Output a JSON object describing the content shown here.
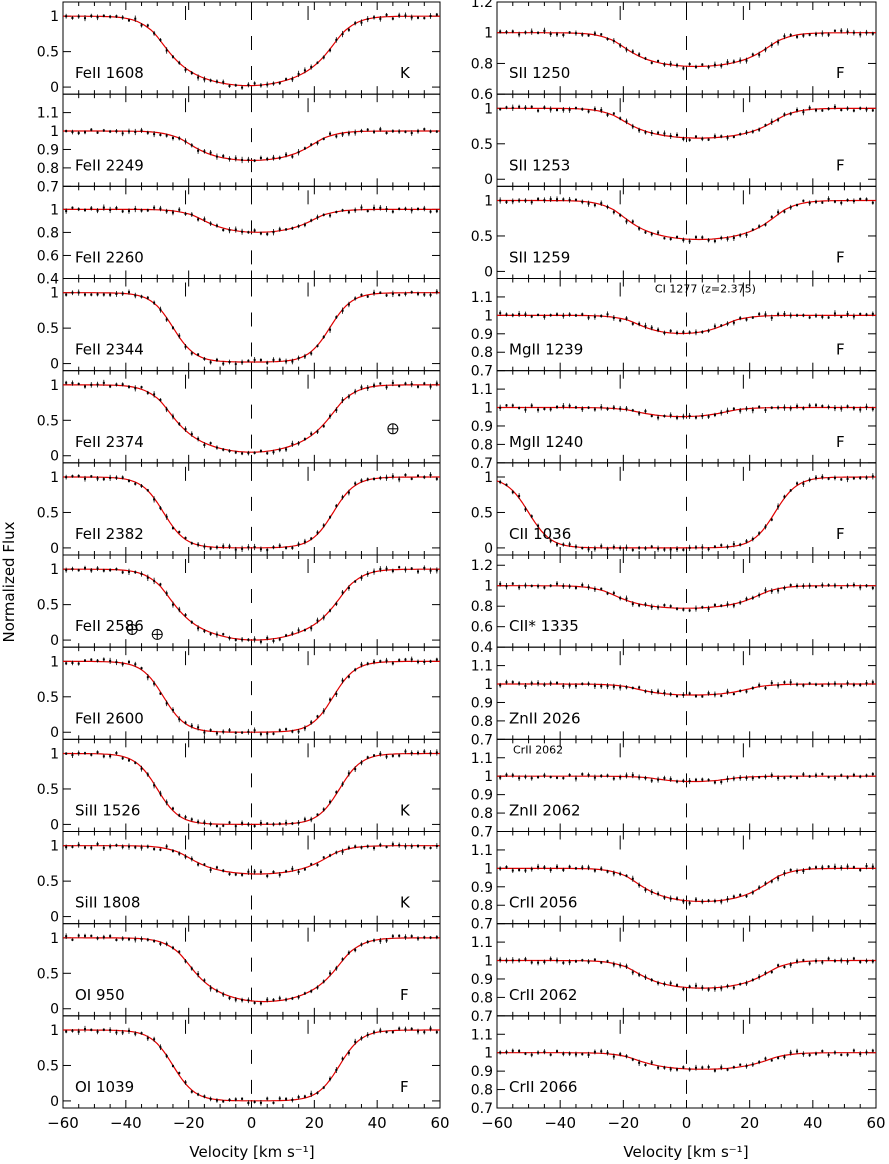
{
  "chart_data": {
    "type": "line",
    "title": "",
    "xlabel": "Velocity [km s⁻¹]",
    "ylabel": "Normalized Flux",
    "xlim": [
      -60,
      60
    ],
    "x_ticks": [
      "−60",
      "−40",
      "−20",
      "0",
      "20",
      "40",
      "60"
    ],
    "component_velocities": [
      -21,
      0,
      18
    ],
    "panel_columns": [
      [
        {
          "ion": "FeII",
          "wl": "1608",
          "tag": "K",
          "ylim": [
            -0.1,
            1.2
          ],
          "yticks": [
            "0",
            "0.5",
            "1"
          ],
          "depth": 0.98,
          "vmin": -30,
          "vmax": 28,
          "shape": "v"
        },
        {
          "ion": "FeII",
          "wl": "2249",
          "tag": "",
          "ylim": [
            0.7,
            1.2
          ],
          "yticks": [
            "0.7",
            "0.8",
            "0.9",
            "1",
            "1.1"
          ],
          "depth": 0.16,
          "vmin": -22,
          "vmax": 22,
          "shape": "v"
        },
        {
          "ion": "FeII",
          "wl": "2260",
          "tag": "",
          "ylim": [
            0.4,
            1.2
          ],
          "yticks": [
            "0.4",
            "0.6",
            "0.8",
            "1"
          ],
          "depth": 0.2,
          "vmin": -18,
          "vmax": 22,
          "shape": "v"
        },
        {
          "ion": "FeII",
          "wl": "2344",
          "tag": "",
          "ylim": [
            -0.1,
            1.2
          ],
          "yticks": [
            "0",
            "0.5",
            "1"
          ],
          "depth": 0.98,
          "vmin": -25,
          "vmax": 25,
          "shape": "sat"
        },
        {
          "ion": "FeII",
          "wl": "2374",
          "tag": "",
          "ylim": [
            -0.1,
            1.2
          ],
          "yticks": [
            "0",
            "0.5",
            "1"
          ],
          "depth": 0.95,
          "vmin": -28,
          "vmax": 28,
          "shape": "v"
        },
        {
          "ion": "FeII",
          "wl": "2382",
          "tag": "",
          "ylim": [
            -0.1,
            1.2
          ],
          "yticks": [
            "0",
            "0.5",
            "1"
          ],
          "depth": 1.0,
          "vmin": -28,
          "vmax": 26,
          "shape": "sat"
        },
        {
          "ion": "FeII",
          "wl": "2586",
          "tag": "",
          "ylim": [
            -0.1,
            1.2
          ],
          "yticks": [
            "0",
            "0.5",
            "1"
          ],
          "depth": 1.0,
          "vmin": -28,
          "vmax": 30,
          "shape": "v"
        },
        {
          "ion": "FeII",
          "wl": "2600",
          "tag": "",
          "ylim": [
            -0.1,
            1.2
          ],
          "yticks": [
            "0",
            "0.5",
            "1"
          ],
          "depth": 1.0,
          "vmin": -28,
          "vmax": 26,
          "shape": "sat"
        },
        {
          "ion": "SiII",
          "wl": "1526",
          "tag": "K",
          "ylim": [
            -0.1,
            1.2
          ],
          "yticks": [
            "0",
            "0.5",
            "1"
          ],
          "depth": 1.0,
          "vmin": -30,
          "vmax": 28,
          "shape": "sat"
        },
        {
          "ion": "SiII",
          "wl": "1808",
          "tag": "K",
          "ylim": [
            -0.1,
            1.2
          ],
          "yticks": [
            "0",
            "0.5",
            "1"
          ],
          "depth": 0.4,
          "vmin": -22,
          "vmax": 26,
          "shape": "v"
        },
        {
          "ion": "OI",
          "wl": "950",
          "tag": "F",
          "ylim": [
            -0.1,
            1.2
          ],
          "yticks": [
            "0",
            "0.5",
            "1"
          ],
          "depth": 0.9,
          "vmin": -22,
          "vmax": 30,
          "shape": "v"
        },
        {
          "ion": "OI",
          "wl": "1039",
          "tag": "F",
          "ylim": [
            -0.1,
            1.2
          ],
          "yticks": [
            "0",
            "0.5",
            "1"
          ],
          "depth": 1.0,
          "vmin": -25,
          "vmax": 28,
          "shape": "sat"
        }
      ],
      [
        {
          "ion": "SII",
          "wl": "1250",
          "tag": "F",
          "ylim": [
            0.6,
            1.2
          ],
          "yticks": [
            "0.8",
            "1",
            "1.2"
          ],
          "yticks_extra": [
            "0.6"
          ],
          "depth": 0.22,
          "vmin": -22,
          "vmax": 28,
          "shape": "v"
        },
        {
          "ion": "SII",
          "wl": "1253",
          "tag": "F",
          "ylim": [
            -0.1,
            1.2
          ],
          "yticks": [
            "0",
            "0.5",
            "1"
          ],
          "depth": 0.42,
          "vmin": -22,
          "vmax": 30,
          "shape": "v"
        },
        {
          "ion": "SII",
          "wl": "1259",
          "tag": "F",
          "ylim": [
            -0.1,
            1.2
          ],
          "yticks": [
            "0",
            "0.5",
            "1"
          ],
          "depth": 0.55,
          "vmin": -22,
          "vmax": 30,
          "shape": "v"
        },
        {
          "ion": "MgII",
          "wl": "1239",
          "tag": "F",
          "ylim": [
            0.7,
            1.2
          ],
          "yticks": [
            "0.7",
            "0.8",
            "0.9",
            "1",
            "1.1"
          ],
          "depth": 0.1,
          "vmin": -18,
          "vmax": 15,
          "shape": "v",
          "note": "CI 1277 (z=2.375)"
        },
        {
          "ion": "MgII",
          "wl": "1240",
          "tag": "F",
          "ylim": [
            0.7,
            1.2
          ],
          "yticks": [
            "0.7",
            "0.8",
            "0.9",
            "1",
            "1.1"
          ],
          "depth": 0.05,
          "vmin": -18,
          "vmax": 15,
          "shape": "v"
        },
        {
          "ion": "CII",
          "wl": "1036",
          "tag": "F",
          "ylim": [
            -0.1,
            1.2
          ],
          "yticks": [
            "0",
            "0.5",
            "1"
          ],
          "depth": 1.0,
          "vmin": -50,
          "vmax": 28,
          "shape": "sat"
        },
        {
          "ion": "CII*",
          "wl": "1335",
          "tag": "",
          "ylim": [
            0.4,
            1.3
          ],
          "yticks": [
            "0.4",
            "0.6",
            "0.8",
            "1",
            "1.2"
          ],
          "depth": 0.22,
          "vmin": -25,
          "vmax": 25,
          "shape": "v"
        },
        {
          "ion": "ZnII",
          "wl": "2026",
          "tag": "",
          "ylim": [
            0.7,
            1.2
          ],
          "yticks": [
            "0.7",
            "0.8",
            "0.9",
            "1",
            "1.1"
          ],
          "depth": 0.06,
          "vmin": -18,
          "vmax": 22,
          "shape": "v"
        },
        {
          "ion": "ZnII",
          "wl": "2062",
          "tag": "",
          "ylim": [
            0.7,
            1.2
          ],
          "yticks": [
            "0.7",
            "0.8",
            "0.9",
            "1",
            "1.1"
          ],
          "depth": 0.03,
          "vmin": -12,
          "vmax": 16,
          "shape": "v",
          "note": "CrII 2062"
        },
        {
          "ion": "CrII",
          "wl": "2056",
          "tag": "",
          "ylim": [
            0.7,
            1.2
          ],
          "yticks": [
            "0.7",
            "0.8",
            "0.9",
            "1",
            "1.1"
          ],
          "depth": 0.18,
          "vmin": -18,
          "vmax": 28,
          "shape": "v"
        },
        {
          "ion": "CrII",
          "wl": "2062",
          "tag": "",
          "ylim": [
            0.7,
            1.2
          ],
          "yticks": [
            "0.7",
            "0.8",
            "0.9",
            "1",
            "1.1"
          ],
          "depth": 0.15,
          "vmin": -18,
          "vmax": 28,
          "shape": "v"
        },
        {
          "ion": "CrII",
          "wl": "2066",
          "tag": "",
          "ylim": [
            0.7,
            1.2
          ],
          "yticks": [
            "0.7",
            "0.8",
            "0.9",
            "1",
            "1.1"
          ],
          "depth": 0.09,
          "vmin": -18,
          "vmax": 28,
          "shape": "v"
        }
      ]
    ],
    "telluric_markers": [
      {
        "column": 0,
        "panel": 4,
        "x": 45,
        "y": 0.38
      },
      {
        "column": 0,
        "panel": 6,
        "x": -38,
        "y": 0.15
      },
      {
        "column": 0,
        "panel": 6,
        "x": -30,
        "y": 0.08
      }
    ]
  }
}
